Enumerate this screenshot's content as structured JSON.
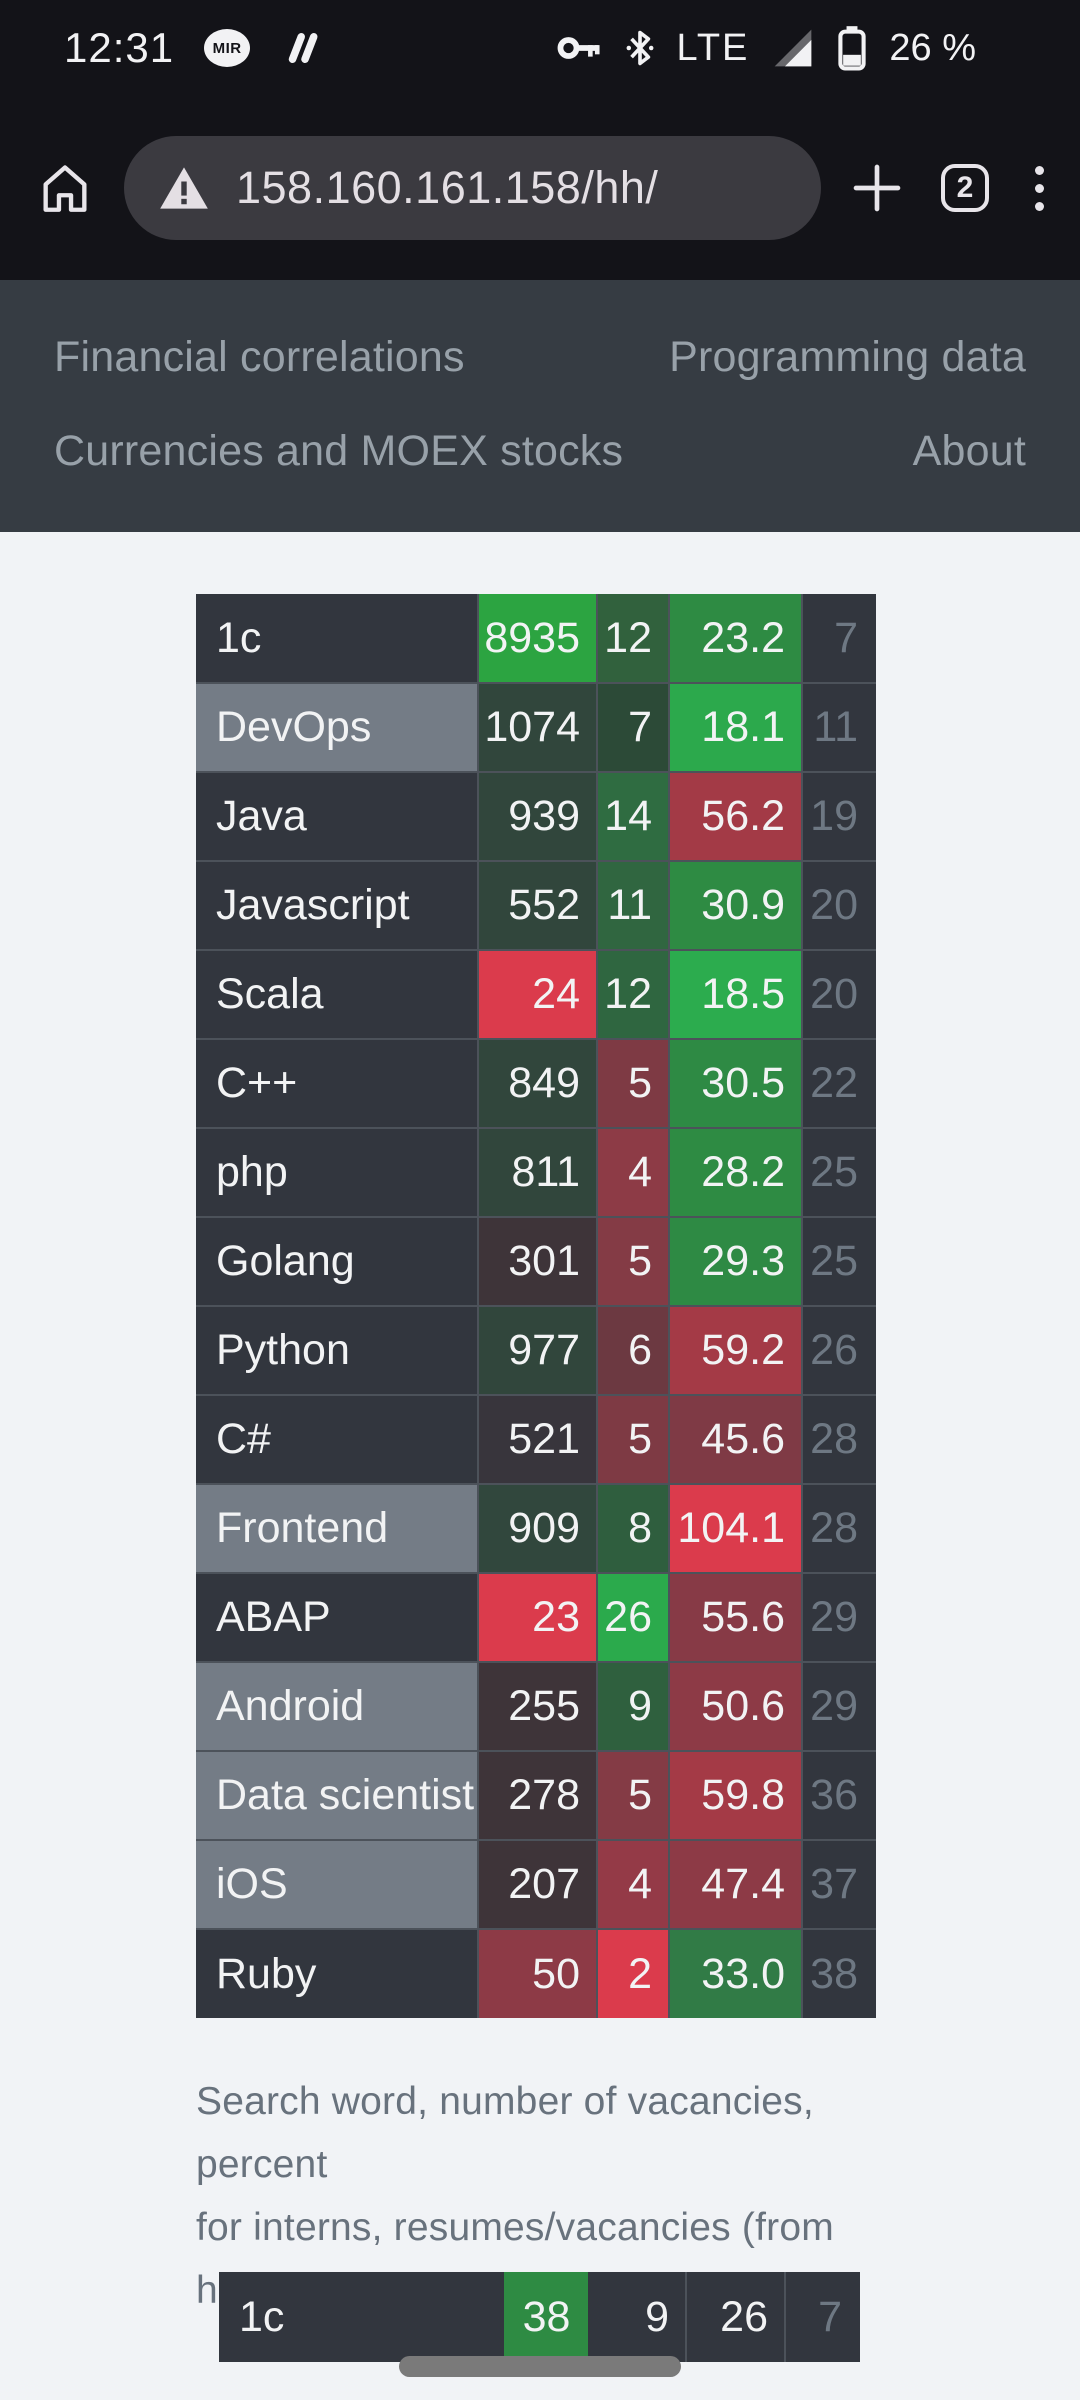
{
  "status_bar": {
    "time": "12:31",
    "sim_badge": "MIR",
    "network": "LTE",
    "battery": "26 %"
  },
  "browser": {
    "url": "158.160.161.158/hh/",
    "tab_count": "2"
  },
  "nav_menu": {
    "links": [
      {
        "label": "Financial correlations"
      },
      {
        "label": "Programming data"
      },
      {
        "label": "Currencies and MOEX stocks"
      },
      {
        "label": "About"
      }
    ]
  },
  "colors": {
    "status_bar_bg": "#131318",
    "url_pill_bg": "#3B3A40",
    "menu_bg": "#363C43",
    "page_bg": "#F1F3F6",
    "cell_dark": "#32363E",
    "cell_gray": "#747C86",
    "separator": "#4C525A",
    "green_bright": "#2CA441",
    "green_mid": "#2E8B43",
    "red_bright": "#DB3B4C",
    "red_mid": "#A33A46"
  },
  "table": {
    "rows": [
      {
        "name": "1c",
        "name_gray": false,
        "cells": [
          {
            "v": "8935",
            "bg": "#2CA441"
          },
          {
            "v": "12",
            "bg": "#31613D"
          },
          {
            "v": "23.2",
            "bg": "#2E8B43"
          }
        ],
        "resumes": "7"
      },
      {
        "name": "DevOps",
        "name_gray": true,
        "cells": [
          {
            "v": "1074",
            "bg": "#31463C"
          },
          {
            "v": "7",
            "bg": "#2C4A37"
          },
          {
            "v": "18.1",
            "bg": "#2CA94C"
          }
        ],
        "resumes": "11"
      },
      {
        "name": "Java",
        "name_gray": false,
        "cells": [
          {
            "v": "939",
            "bg": "#31463C"
          },
          {
            "v": "14",
            "bg": "#2F6C41"
          },
          {
            "v": "56.2",
            "bg": "#A33A46"
          }
        ],
        "resumes": "19"
      },
      {
        "name": "Javascript",
        "name_gray": false,
        "cells": [
          {
            "v": "552",
            "bg": "#31463C"
          },
          {
            "v": "11",
            "bg": "#306640"
          },
          {
            "v": "30.9",
            "bg": "#2E8B43"
          }
        ],
        "resumes": "20"
      },
      {
        "name": "Scala",
        "name_gray": false,
        "cells": [
          {
            "v": "24",
            "bg": "#DB3B4C"
          },
          {
            "v": "12",
            "bg": "#2F6640"
          },
          {
            "v": "18.5",
            "bg": "#2CAC4E"
          }
        ],
        "resumes": "20"
      },
      {
        "name": "C++",
        "name_gray": false,
        "cells": [
          {
            "v": "849",
            "bg": "#31463C"
          },
          {
            "v": "5",
            "bg": "#7E3A44"
          },
          {
            "v": "30.5",
            "bg": "#2E8A44"
          }
        ],
        "resumes": "22"
      },
      {
        "name": "php",
        "name_gray": false,
        "cells": [
          {
            "v": "811",
            "bg": "#31463C"
          },
          {
            "v": "4",
            "bg": "#8D3B46"
          },
          {
            "v": "28.2",
            "bg": "#2E8B43"
          }
        ],
        "resumes": "25"
      },
      {
        "name": "Golang",
        "name_gray": false,
        "cells": [
          {
            "v": "301",
            "bg": "#3E3439"
          },
          {
            "v": "5",
            "bg": "#843B45"
          },
          {
            "v": "29.3",
            "bg": "#2E8A44"
          }
        ],
        "resumes": "25"
      },
      {
        "name": "Python",
        "name_gray": false,
        "cells": [
          {
            "v": "977",
            "bg": "#31463C"
          },
          {
            "v": "6",
            "bg": "#6C3941"
          },
          {
            "v": "59.2",
            "bg": "#A43A46"
          }
        ],
        "resumes": "26"
      },
      {
        "name": "C#",
        "name_gray": false,
        "cells": [
          {
            "v": "521",
            "bg": "#38353C"
          },
          {
            "v": "5",
            "bg": "#7E3A44"
          },
          {
            "v": "45.6",
            "bg": "#7F3A45"
          }
        ],
        "resumes": "28"
      },
      {
        "name": "Frontend",
        "name_gray": true,
        "cells": [
          {
            "v": "909",
            "bg": "#31473D"
          },
          {
            "v": "8",
            "bg": "#2F5E3E"
          },
          {
            "v": "104.1",
            "bg": "#DB3B4C"
          }
        ],
        "resumes": "28"
      },
      {
        "name": "ABAP",
        "name_gray": false,
        "cells": [
          {
            "v": "23",
            "bg": "#DB3B4C"
          },
          {
            "v": "26",
            "bg": "#2BAA4C"
          },
          {
            "v": "55.6",
            "bg": "#873A46"
          }
        ],
        "resumes": "29"
      },
      {
        "name": "Android",
        "name_gray": true,
        "cells": [
          {
            "v": "255",
            "bg": "#3E3439"
          },
          {
            "v": "9",
            "bg": "#2F603E"
          },
          {
            "v": "50.6",
            "bg": "#8D3A46"
          }
        ],
        "resumes": "29"
      },
      {
        "name": "Data scientist",
        "name_gray": true,
        "cells": [
          {
            "v": "278",
            "bg": "#3E3439"
          },
          {
            "v": "5",
            "bg": "#843B45"
          },
          {
            "v": "59.8",
            "bg": "#A43A46"
          }
        ],
        "resumes": "36"
      },
      {
        "name": "iOS",
        "name_gray": true,
        "cells": [
          {
            "v": "207",
            "bg": "#3E3439"
          },
          {
            "v": "4",
            "bg": "#943A47"
          },
          {
            "v": "47.4",
            "bg": "#8D3A46"
          }
        ],
        "resumes": "37"
      },
      {
        "name": "Ruby",
        "name_gray": false,
        "cells": [
          {
            "v": "50",
            "bg": "#8D3A46"
          },
          {
            "v": "2",
            "bg": "#DB3B4C"
          },
          {
            "v": "33.0",
            "bg": "#317B46"
          }
        ],
        "resumes": "38"
      }
    ]
  },
  "caption": {
    "line1": "Search word, number of vacancies, percent",
    "line2": "for interns, resumes/vacancies (from hh.ru)"
  },
  "bottom_table": {
    "rows": [
      {
        "name": "1c",
        "name_gray": false,
        "cells": [
          {
            "v": "38",
            "bg": "#2E8B43",
            "align": "center"
          },
          {
            "v": "9",
            "bg": ""
          },
          {
            "v": "26",
            "bg": "",
            "sep": true
          }
        ],
        "resumes": "7",
        "res_sep": true
      }
    ]
  }
}
